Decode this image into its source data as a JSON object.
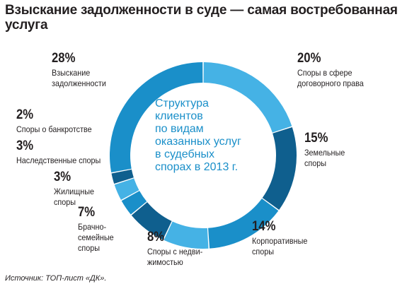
{
  "title": "Взыскание задолженности в суде — самая востребованная услуга",
  "center_text": "Структура\nклиентов\nпо видам\nоказанных услуг\nв судебных\nспорах в 2013 г.",
  "source": "Источник: ТОП-лист «ДК».",
  "colors": {
    "mid_blue": "#1a8fc9",
    "light_blue": "#45b2e5",
    "dark_blue": "#0f5f8e",
    "center_text": "#1a8fc9"
  },
  "chart_data": {
    "type": "pie",
    "donut": true,
    "title": "Структура клиентов по видам оказанных услуг в судебных спорах в 2013 г.",
    "unit": "%",
    "categories": [
      "Споры в сфере договорного права",
      "Земельные споры",
      "Корпоративные споры",
      "Споры с недвижимостью",
      "Брачно-семейные споры",
      "Жилищные споры",
      "Наследственные споры",
      "Споры о банкротстве",
      "Взыскание задолженности"
    ],
    "values": [
      20,
      15,
      14,
      8,
      7,
      3,
      3,
      2,
      28
    ],
    "value_labels": [
      "20%",
      "15%",
      "14%",
      "8%",
      "7%",
      "3%",
      "3%",
      "2%",
      "28%"
    ],
    "label_text": [
      "Споры в сфере\nдоговорного права",
      "Земельные\nспоры",
      "Корпоративные\nспоры",
      "Споры с недви-\nжимостью",
      "Брачно-\nсемейные\nспоры",
      "Жилищные\nспоры",
      "Наследственные споры",
      "Споры о банкротстве",
      "Взыскание\nзадолженности"
    ],
    "slice_colors": [
      "#45b2e5",
      "#0f5f8e",
      "#1a8fc9",
      "#45b2e5",
      "#0f5f8e",
      "#1a8fc9",
      "#45b2e5",
      "#0f5f8e",
      "#1a8fc9"
    ]
  }
}
